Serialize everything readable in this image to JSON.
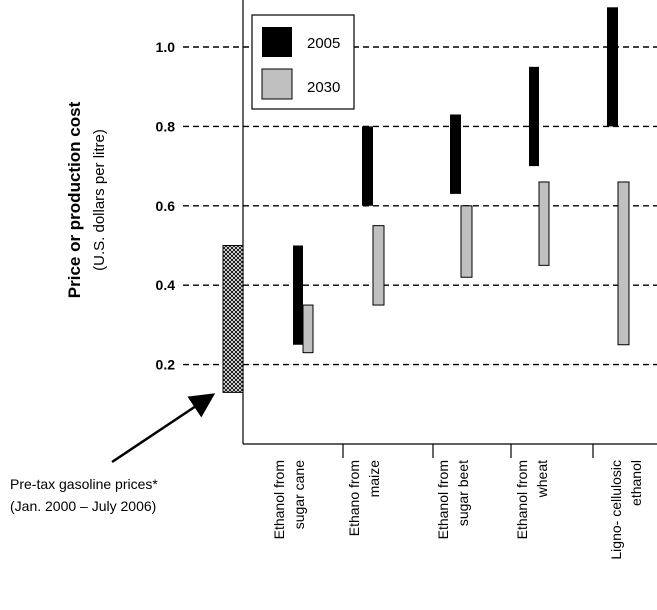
{
  "chart_data": {
    "type": "bar",
    "subtype": "floating-range",
    "ylabel": "Price or production cost",
    "ylabel_sub": "(U.S. dollars per litre)",
    "ylim": [
      0,
      1.1
    ],
    "yticks": [
      0.2,
      0.4,
      0.6,
      0.8,
      1.0
    ],
    "ytick_labels": [
      "0.2",
      "0.4",
      "0.6",
      "0.8",
      "1.0"
    ],
    "grid": "dashed horizontal at each y tick",
    "legend": {
      "position": "top-left",
      "entries": [
        {
          "name": "2005",
          "color": "#000000"
        },
        {
          "name": "2030",
          "color": "#c0c0c0"
        }
      ]
    },
    "reference": {
      "label": "Pre-tax gasoline prices*",
      "sublabel": "(Jan. 2000 – July 2006)",
      "low": 0.13,
      "high": 0.5,
      "pattern": "crosshatch"
    },
    "categories": [
      [
        "Ethanol from",
        "sugar cane"
      ],
      [
        "Ethano from",
        "maize"
      ],
      [
        "Ethanol from",
        "sugar  beet"
      ],
      [
        "Ethanol from",
        "wheat"
      ],
      [
        "Ligno- cellulosic",
        "ethanol"
      ]
    ],
    "series": [
      {
        "name": "2005",
        "color": "#000000",
        "ranges": [
          [
            0.25,
            0.5
          ],
          [
            0.6,
            0.8
          ],
          [
            0.63,
            0.83
          ],
          [
            0.7,
            0.95
          ],
          [
            0.8,
            1.1
          ]
        ]
      },
      {
        "name": "2030",
        "color": "#c0c0c0",
        "ranges": [
          [
            0.23,
            0.35
          ],
          [
            0.35,
            0.55
          ],
          [
            0.42,
            0.6
          ],
          [
            0.45,
            0.66
          ],
          [
            0.25,
            0.66
          ]
        ]
      }
    ]
  }
}
